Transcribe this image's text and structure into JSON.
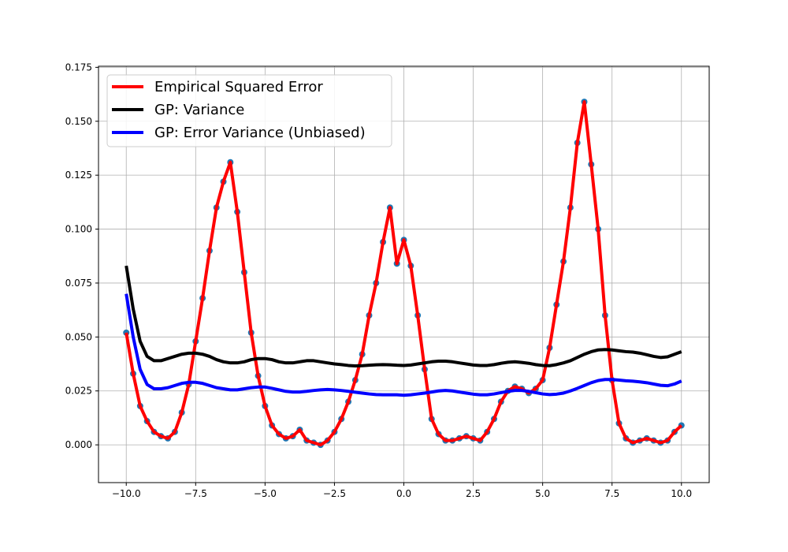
{
  "chart_data": {
    "type": "line",
    "title": "",
    "xlabel": "",
    "ylabel": "",
    "xlim": [
      -11,
      11
    ],
    "ylim": [
      -0.0175,
      0.1755
    ],
    "grid": true,
    "legend_placement": "top-left",
    "xticks": [
      -10.0,
      -7.5,
      -5.0,
      -2.5,
      0.0,
      2.5,
      5.0,
      7.5,
      10.0
    ],
    "xtick_labels": [
      "−10.0",
      "−7.5",
      "−5.0",
      "−2.5",
      "0.0",
      "2.5",
      "5.0",
      "7.5",
      "10.0"
    ],
    "yticks": [
      0.0,
      0.025,
      0.05,
      0.075,
      0.1,
      0.125,
      0.15,
      0.175
    ],
    "ytick_labels": [
      "0.000",
      "0.025",
      "0.050",
      "0.075",
      "0.100",
      "0.125",
      "0.150",
      "0.175"
    ],
    "colors": {
      "empirical": "#ff0000",
      "markers": "#1f77b4",
      "variance": "#000000",
      "error_variance": "#0000ff",
      "grid": "#b0b0b0"
    },
    "series": [
      {
        "name": "Empirical Squared Error",
        "x": [
          -10.0,
          -9.75,
          -9.5,
          -9.25,
          -9.0,
          -8.75,
          -8.5,
          -8.25,
          -8.0,
          -7.75,
          -7.5,
          -7.25,
          -7.0,
          -6.75,
          -6.5,
          -6.25,
          -6.0,
          -5.75,
          -5.5,
          -5.25,
          -5.0,
          -4.75,
          -4.5,
          -4.25,
          -4.0,
          -3.75,
          -3.5,
          -3.25,
          -3.0,
          -2.75,
          -2.5,
          -2.25,
          -2.0,
          -1.75,
          -1.5,
          -1.25,
          -1.0,
          -0.75,
          -0.5,
          -0.25,
          0.0,
          0.25,
          0.5,
          0.75,
          1.0,
          1.25,
          1.5,
          1.75,
          2.0,
          2.25,
          2.5,
          2.75,
          3.0,
          3.25,
          3.5,
          3.75,
          4.0,
          4.25,
          4.5,
          4.75,
          5.0,
          5.25,
          5.5,
          5.75,
          6.0,
          6.25,
          6.5,
          6.75,
          7.0,
          7.25,
          7.5,
          7.75,
          8.0,
          8.25,
          8.5,
          8.75,
          9.0,
          9.25,
          9.5,
          9.75,
          10.0
        ],
        "values": [
          0.052,
          0.033,
          0.018,
          0.011,
          0.006,
          0.004,
          0.003,
          0.006,
          0.015,
          0.028,
          0.048,
          0.068,
          0.09,
          0.11,
          0.122,
          0.131,
          0.108,
          0.08,
          0.052,
          0.032,
          0.018,
          0.009,
          0.005,
          0.003,
          0.004,
          0.007,
          0.002,
          0.001,
          0.0,
          0.002,
          0.006,
          0.012,
          0.02,
          0.03,
          0.042,
          0.06,
          0.075,
          0.094,
          0.11,
          0.084,
          0.095,
          0.083,
          0.06,
          0.035,
          0.012,
          0.005,
          0.002,
          0.002,
          0.003,
          0.004,
          0.003,
          0.002,
          0.006,
          0.012,
          0.02,
          0.025,
          0.027,
          0.026,
          0.024,
          0.026,
          0.03,
          0.045,
          0.065,
          0.085,
          0.11,
          0.14,
          0.159,
          0.13,
          0.1,
          0.06,
          0.03,
          0.01,
          0.003,
          0.001,
          0.002,
          0.003,
          0.002,
          0.001,
          0.002,
          0.006,
          0.009
        ]
      },
      {
        "name": "GP: Variance",
        "x": [
          -10.0,
          -9.75,
          -9.5,
          -9.25,
          -9.0,
          -8.75,
          -8.5,
          -8.25,
          -8.0,
          -7.75,
          -7.5,
          -7.25,
          -7.0,
          -6.75,
          -6.5,
          -6.25,
          -6.0,
          -5.75,
          -5.5,
          -5.25,
          -5.0,
          -4.75,
          -4.5,
          -4.25,
          -4.0,
          -3.75,
          -3.5,
          -3.25,
          -3.0,
          -2.75,
          -2.5,
          -2.25,
          -2.0,
          -1.75,
          -1.5,
          -1.25,
          -1.0,
          -0.75,
          -0.5,
          -0.25,
          0.0,
          0.25,
          0.5,
          0.75,
          1.0,
          1.25,
          1.5,
          1.75,
          2.0,
          2.25,
          2.5,
          2.75,
          3.0,
          3.25,
          3.5,
          3.75,
          4.0,
          4.25,
          4.5,
          4.75,
          5.0,
          5.25,
          5.5,
          5.75,
          6.0,
          6.25,
          6.5,
          6.75,
          7.0,
          7.25,
          7.5,
          7.75,
          8.0,
          8.25,
          8.5,
          8.75,
          9.0,
          9.25,
          9.5,
          9.75,
          10.0
        ],
        "values": [
          0.083,
          0.063,
          0.048,
          0.041,
          0.039,
          0.039,
          0.04,
          0.041,
          0.042,
          0.0425,
          0.0425,
          0.042,
          0.041,
          0.0395,
          0.0385,
          0.038,
          0.038,
          0.0385,
          0.0395,
          0.04,
          0.04,
          0.0395,
          0.0385,
          0.038,
          0.038,
          0.0385,
          0.039,
          0.039,
          0.0385,
          0.038,
          0.0375,
          0.0372,
          0.0368,
          0.0366,
          0.0367,
          0.0369,
          0.0371,
          0.0372,
          0.0371,
          0.0369,
          0.0368,
          0.037,
          0.0375,
          0.038,
          0.0385,
          0.0388,
          0.0388,
          0.0385,
          0.038,
          0.0375,
          0.037,
          0.0368,
          0.0368,
          0.0372,
          0.0378,
          0.0383,
          0.0385,
          0.0382,
          0.0378,
          0.0372,
          0.0368,
          0.0367,
          0.0372,
          0.038,
          0.039,
          0.0405,
          0.042,
          0.0432,
          0.044,
          0.0442,
          0.044,
          0.0436,
          0.0432,
          0.043,
          0.0425,
          0.0418,
          0.041,
          0.0405,
          0.0408,
          0.042,
          0.0432
        ]
      },
      {
        "name": "GP: Error Variance (Unbiased)",
        "x": [
          -10.0,
          -9.75,
          -9.5,
          -9.25,
          -9.0,
          -8.75,
          -8.5,
          -8.25,
          -8.0,
          -7.75,
          -7.5,
          -7.25,
          -7.0,
          -6.75,
          -6.5,
          -6.25,
          -6.0,
          -5.75,
          -5.5,
          -5.25,
          -5.0,
          -4.75,
          -4.5,
          -4.25,
          -4.0,
          -3.75,
          -3.5,
          -3.25,
          -3.0,
          -2.75,
          -2.5,
          -2.25,
          -2.0,
          -1.75,
          -1.5,
          -1.25,
          -1.0,
          -0.75,
          -0.5,
          -0.25,
          0.0,
          0.25,
          0.5,
          0.75,
          1.0,
          1.25,
          1.5,
          1.75,
          2.0,
          2.25,
          2.5,
          2.75,
          3.0,
          3.25,
          3.5,
          3.75,
          4.0,
          4.25,
          4.5,
          4.75,
          5.0,
          5.25,
          5.5,
          5.75,
          6.0,
          6.25,
          6.5,
          6.75,
          7.0,
          7.25,
          7.5,
          7.75,
          8.0,
          8.25,
          8.5,
          8.75,
          9.0,
          9.25,
          9.5,
          9.75,
          10.0
        ],
        "values": [
          0.07,
          0.05,
          0.035,
          0.028,
          0.026,
          0.026,
          0.0265,
          0.0275,
          0.0285,
          0.029,
          0.029,
          0.0285,
          0.0275,
          0.0265,
          0.026,
          0.0255,
          0.0255,
          0.026,
          0.0265,
          0.0268,
          0.0268,
          0.0262,
          0.0255,
          0.0248,
          0.0245,
          0.0245,
          0.0248,
          0.0252,
          0.0255,
          0.0257,
          0.0255,
          0.0252,
          0.0248,
          0.0244,
          0.024,
          0.0236,
          0.0233,
          0.0232,
          0.0232,
          0.0232,
          0.023,
          0.0232,
          0.0236,
          0.024,
          0.0245,
          0.025,
          0.0252,
          0.025,
          0.0245,
          0.024,
          0.0235,
          0.0232,
          0.0232,
          0.0236,
          0.0242,
          0.0248,
          0.0252,
          0.0252,
          0.0248,
          0.0242,
          0.0236,
          0.0233,
          0.0235,
          0.024,
          0.025,
          0.0262,
          0.0275,
          0.0288,
          0.0298,
          0.0303,
          0.0303,
          0.03,
          0.0297,
          0.0295,
          0.0292,
          0.0288,
          0.0282,
          0.0276,
          0.0274,
          0.0282,
          0.0296
        ]
      }
    ]
  }
}
